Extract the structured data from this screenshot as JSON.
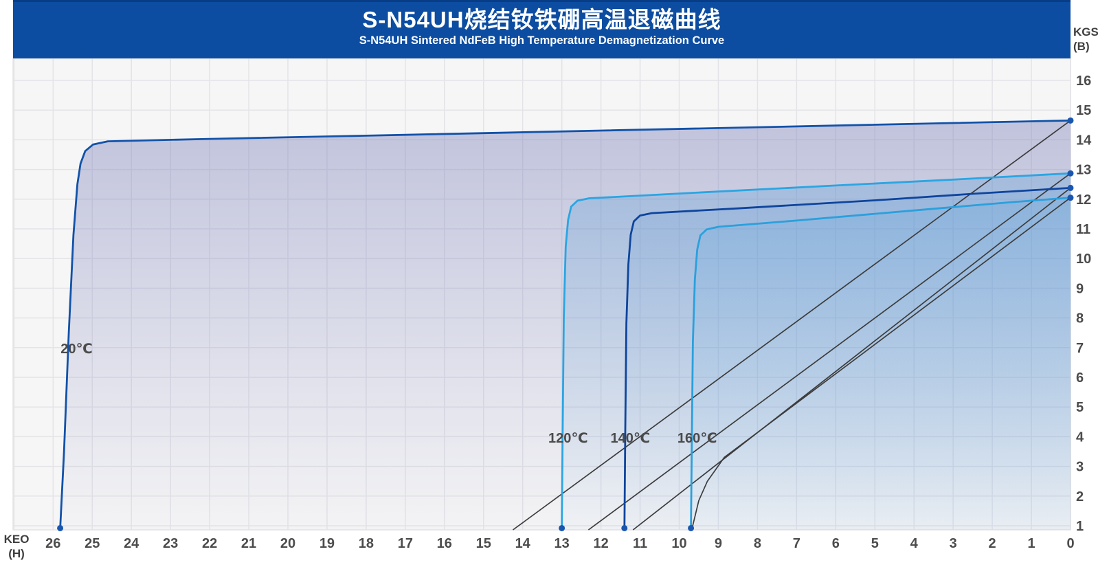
{
  "header": {
    "title_zh": "S-N54UH烧结钕铁硼高温退磁曲线",
    "title_en": "S-N54UH Sintered NdFeB High Temperature Demagnetization Curve",
    "bg_color": "#0C4DA2",
    "top_strip_color": "#083C84",
    "text_color": "#FFFFFF"
  },
  "axis_units": {
    "y_line1": "KGS",
    "y_line2": "(B)",
    "x_line1": "KEO",
    "x_line2": "(H)"
  },
  "style": {
    "plot_bg": "#F6F6F6",
    "grid_color": "#E4E4E8",
    "tick_color": "#4C4C4C",
    "temp_label_color": "#4B4B4B",
    "marker_color": "#1A56AE",
    "normal_line_color": "#3C3C3C"
  },
  "chart_data": {
    "type": "line",
    "title": "S-N54UH Sintered NdFeB High Temperature Demagnetization Curve",
    "subtitle_zh": "S-N54UH烧结钕铁硼高温退磁曲线",
    "legend_position": "none",
    "grid": true,
    "x_axis": {
      "unit": "KEO (H)",
      "reversed": true,
      "min": 0,
      "max": 27.05,
      "ticks": [
        "26",
        "25",
        "24",
        "23",
        "22",
        "21",
        "20",
        "19",
        "18",
        "17",
        "16",
        "15",
        "14",
        "13",
        "12",
        "11",
        "10",
        "9",
        "8",
        "7",
        "6",
        "5",
        "4",
        "3",
        "2",
        "1",
        "0"
      ],
      "tick_values": [
        26,
        25,
        24,
        23,
        22,
        21,
        20,
        19,
        18,
        17,
        16,
        15,
        14,
        13,
        12,
        11,
        10,
        9,
        8,
        7,
        6,
        5,
        4,
        3,
        2,
        1,
        0
      ]
    },
    "y_axis": {
      "unit": "KGS (B)",
      "min": 0.86,
      "max": 16.74,
      "ticks": [
        "16",
        "15",
        "14",
        "13",
        "12",
        "11",
        "10",
        "9",
        "8",
        "7",
        "6",
        "5",
        "4",
        "3",
        "2",
        "1"
      ],
      "tick_values": [
        16,
        15,
        14,
        13,
        12,
        11,
        10,
        9,
        8,
        7,
        6,
        5,
        4,
        3,
        2,
        1
      ]
    },
    "curves": [
      {
        "id": "20C-intrinsic",
        "temp": "20℃",
        "kind": "intrinsic",
        "color": "#1252A9",
        "width": 2.8,
        "fill": {
          "color": "#7277B6",
          "top_opacity": 0.4,
          "bottom_opacity": 0.02
        },
        "points": [
          [
            25.82,
            0.92
          ],
          [
            25.72,
            3.5
          ],
          [
            25.6,
            7.5
          ],
          [
            25.48,
            10.8
          ],
          [
            25.38,
            12.5
          ],
          [
            25.3,
            13.2
          ],
          [
            25.18,
            13.62
          ],
          [
            24.98,
            13.84
          ],
          [
            24.6,
            13.95
          ],
          [
            22,
            14.03
          ],
          [
            18,
            14.14
          ],
          [
            12,
            14.31
          ],
          [
            6,
            14.48
          ],
          [
            0,
            14.65
          ]
        ]
      },
      {
        "id": "120C-intrinsic",
        "temp": "120℃",
        "kind": "intrinsic",
        "color": "#2BA5E2",
        "width": 2.8,
        "fill": {
          "color": "#3E92D4",
          "top_opacity": 0.26,
          "bottom_opacity": 0.02
        },
        "points": [
          [
            13.0,
            0.92
          ],
          [
            12.98,
            4.0
          ],
          [
            12.95,
            8.0
          ],
          [
            12.9,
            10.4
          ],
          [
            12.84,
            11.3
          ],
          [
            12.76,
            11.75
          ],
          [
            12.6,
            11.95
          ],
          [
            12.3,
            12.03
          ],
          [
            10,
            12.19
          ],
          [
            6,
            12.46
          ],
          [
            3,
            12.66
          ],
          [
            0,
            12.87
          ]
        ]
      },
      {
        "id": "140C-intrinsic",
        "temp": "140℃",
        "kind": "intrinsic",
        "color": "#0E459D",
        "width": 2.8,
        "fill": {
          "color": "#4089CF",
          "top_opacity": 0.13,
          "bottom_opacity": 0.02
        },
        "points": [
          [
            11.4,
            0.92
          ],
          [
            11.38,
            4.0
          ],
          [
            11.35,
            7.8
          ],
          [
            11.3,
            9.8
          ],
          [
            11.24,
            10.8
          ],
          [
            11.16,
            11.25
          ],
          [
            11.0,
            11.45
          ],
          [
            10.7,
            11.53
          ],
          [
            8.5,
            11.69
          ],
          [
            5,
            11.96
          ],
          [
            2.5,
            12.18
          ],
          [
            0,
            12.38
          ]
        ]
      },
      {
        "id": "160C-intrinsic",
        "temp": "160℃",
        "kind": "intrinsic",
        "color": "#2BA0DC",
        "width": 2.8,
        "fill": {
          "color": "#46A0DF",
          "top_opacity": 0.17,
          "bottom_opacity": 0.02
        },
        "points": [
          [
            9.7,
            0.92
          ],
          [
            9.68,
            3.5
          ],
          [
            9.65,
            7.2
          ],
          [
            9.6,
            9.3
          ],
          [
            9.54,
            10.3
          ],
          [
            9.46,
            10.78
          ],
          [
            9.3,
            10.98
          ],
          [
            9.0,
            11.07
          ],
          [
            7,
            11.28
          ],
          [
            4,
            11.62
          ],
          [
            1.5,
            11.9
          ],
          [
            0,
            12.05
          ]
        ]
      },
      {
        "id": "20C-normal",
        "temp": "20℃",
        "kind": "normal",
        "color": "#3C3C3C",
        "width": 1.7,
        "points": [
          [
            14.25,
            0.86
          ],
          [
            0,
            14.65
          ]
        ]
      },
      {
        "id": "120C-normal",
        "temp": "120℃",
        "kind": "normal",
        "color": "#3C3C3C",
        "width": 1.7,
        "points": [
          [
            12.32,
            0.86
          ],
          [
            0,
            12.87
          ]
        ]
      },
      {
        "id": "140C-normal",
        "temp": "140℃",
        "kind": "normal",
        "color": "#3C3C3C",
        "width": 1.7,
        "points": [
          [
            11.18,
            0.86
          ],
          [
            0,
            12.38
          ]
        ]
      },
      {
        "id": "160C-normal",
        "temp": "160℃",
        "kind": "normal",
        "color": "#3C3C3C",
        "width": 1.7,
        "points": [
          [
            9.67,
            0.92
          ],
          [
            9.6,
            1.3
          ],
          [
            9.5,
            1.85
          ],
          [
            9.28,
            2.5
          ],
          [
            8.85,
            3.3
          ],
          [
            0,
            12.05
          ]
        ]
      }
    ],
    "markers": {
      "color": "#1A56AE",
      "radius": 4.5,
      "points": [
        [
          25.82,
          0.92
        ],
        [
          13.0,
          0.92
        ],
        [
          11.4,
          0.92
        ],
        [
          9.7,
          0.92
        ],
        [
          0,
          14.65
        ],
        [
          0,
          12.87
        ],
        [
          0,
          12.38
        ],
        [
          0,
          12.05
        ]
      ]
    },
    "temp_labels": [
      {
        "text": "20℃",
        "h": 25.4,
        "b": 6.97
      },
      {
        "text": "120℃",
        "h": 12.84,
        "b": 3.96
      },
      {
        "text": "140℃",
        "h": 11.25,
        "b": 3.96
      },
      {
        "text": "160℃",
        "h": 9.54,
        "b": 3.96
      }
    ],
    "key_values": {
      "Br_KGS": {
        "20℃": 14.65,
        "120℃": 12.87,
        "140℃": 12.38,
        "160℃": 12.05
      },
      "Hcj_KEO": {
        "20℃": 25.82,
        "120℃": 13.0,
        "140℃": 11.4,
        "160℃": 9.7
      },
      "Hcb_KEO": {
        "20℃": 14.25,
        "120℃": 12.32,
        "140℃": 11.18,
        "160℃": 9.67
      }
    }
  }
}
